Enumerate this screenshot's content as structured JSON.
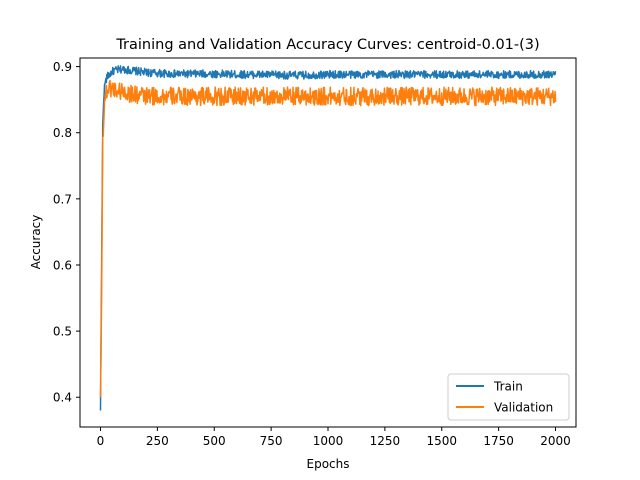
{
  "chart_data": {
    "type": "line",
    "title": "Training and Validation Accuracy Curves: centroid-0.01-(3)",
    "xlabel": "Epochs",
    "ylabel": "Accuracy",
    "xlim": [
      -90,
      2090
    ],
    "ylim": [
      0.355,
      0.913
    ],
    "xticks": [
      0,
      250,
      500,
      750,
      1000,
      1250,
      1500,
      1750,
      2000
    ],
    "yticks": [
      0.4,
      0.5,
      0.6,
      0.7,
      0.8,
      0.9
    ],
    "grid": false,
    "legend_position": "lower right",
    "series": [
      {
        "name": "Train",
        "color": "#1f77b4",
        "x": [
          0,
          5,
          10,
          15,
          20,
          30,
          40,
          50,
          60,
          80,
          100,
          120,
          140,
          160,
          180,
          200,
          250,
          300,
          400,
          500,
          600,
          700,
          800,
          900,
          1000,
          1100,
          1200,
          1300,
          1400,
          1500,
          1600,
          1700,
          1800,
          1900,
          2000
        ],
        "values": [
          0.38,
          0.6,
          0.81,
          0.86,
          0.875,
          0.885,
          0.888,
          0.892,
          0.894,
          0.895,
          0.896,
          0.895,
          0.894,
          0.893,
          0.892,
          0.891,
          0.89,
          0.889,
          0.889,
          0.889,
          0.888,
          0.888,
          0.887,
          0.887,
          0.888,
          0.888,
          0.888,
          0.888,
          0.888,
          0.888,
          0.888,
          0.888,
          0.888,
          0.888,
          0.888
        ],
        "noise": 0.006
      },
      {
        "name": "Validation",
        "color": "#ff7f0e",
        "x": [
          0,
          5,
          10,
          15,
          20,
          30,
          40,
          50,
          60,
          80,
          100,
          120,
          140,
          160,
          180,
          200,
          250,
          300,
          400,
          500,
          600,
          700,
          800,
          900,
          1000,
          1100,
          1200,
          1300,
          1400,
          1500,
          1600,
          1700,
          1800,
          1900,
          2000
        ],
        "values": [
          0.4,
          0.55,
          0.79,
          0.83,
          0.855,
          0.866,
          0.868,
          0.868,
          0.866,
          0.864,
          0.862,
          0.86,
          0.858,
          0.857,
          0.856,
          0.855,
          0.855,
          0.855,
          0.855,
          0.855,
          0.855,
          0.855,
          0.855,
          0.855,
          0.855,
          0.855,
          0.855,
          0.855,
          0.855,
          0.855,
          0.855,
          0.855,
          0.855,
          0.855,
          0.855
        ],
        "noise": 0.014
      }
    ]
  }
}
